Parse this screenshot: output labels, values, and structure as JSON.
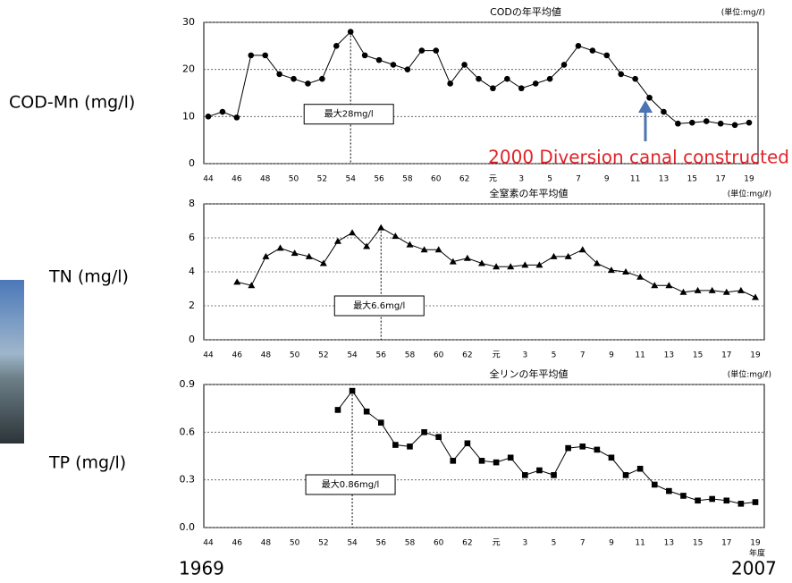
{
  "chart_data": [
    {
      "type": "line",
      "title": "CODの年平均値",
      "unit": "(単位:mg/ℓ)",
      "ylabel": "COD-Mn (mg/l)",
      "max_label": "最大28mg/l",
      "annotation": "2000 Diversion canal constructed",
      "marker": "circle",
      "color": "#000000",
      "grid": true,
      "categories": [
        "44",
        null,
        "46",
        null,
        "48",
        null,
        "50",
        null,
        "52",
        null,
        "54",
        null,
        "56",
        null,
        "58",
        null,
        "60",
        null,
        "62",
        null,
        "元",
        null,
        "3",
        null,
        "5",
        null,
        "7",
        null,
        "9",
        null,
        "11",
        null,
        "13",
        null,
        "15",
        null,
        "17",
        null,
        "19"
      ],
      "values": [
        10,
        11,
        9.8,
        23,
        23,
        19,
        18,
        17,
        18,
        25,
        28,
        23,
        22,
        21,
        20,
        24,
        24,
        17,
        21,
        18,
        16,
        18,
        16,
        17,
        18,
        21,
        25,
        24,
        23,
        19,
        18,
        14,
        11,
        8.5,
        8.7,
        9,
        8.5,
        8.2,
        8.7
      ],
      "ylim": [
        0,
        30
      ],
      "yticks": [
        0,
        10,
        20,
        30
      ]
    },
    {
      "type": "line",
      "title": "全窒素の年平均値",
      "unit": "(単位:mg/ℓ)",
      "ylabel": "TN (mg/l)",
      "max_label": "最大6.6mg/l",
      "marker": "triangle",
      "color": "#000000",
      "grid": true,
      "categories": [
        "44",
        null,
        "46",
        null,
        "48",
        null,
        "50",
        null,
        "52",
        null,
        "54",
        null,
        "56",
        null,
        "58",
        null,
        "60",
        null,
        "62",
        null,
        "元",
        null,
        "3",
        null,
        "5",
        null,
        "7",
        null,
        "9",
        null,
        "11",
        null,
        "13",
        null,
        "15",
        null,
        "17",
        null,
        "19"
      ],
      "values": [
        null,
        null,
        3.4,
        3.2,
        4.9,
        5.4,
        5.1,
        4.9,
        4.5,
        5.8,
        6.3,
        5.5,
        6.6,
        6.1,
        5.6,
        5.3,
        5.3,
        4.6,
        4.8,
        4.5,
        4.3,
        4.3,
        4.4,
        4.4,
        4.9,
        4.9,
        5.3,
        4.5,
        4.1,
        4.0,
        3.7,
        3.2,
        3.2,
        2.8,
        2.9,
        2.9,
        2.8,
        2.9,
        2.5
      ],
      "ylim": [
        0,
        8
      ],
      "yticks": [
        0,
        2,
        4,
        6,
        8
      ]
    },
    {
      "type": "line",
      "title": "全リンの年平均値",
      "unit": "(単位:mg/ℓ)",
      "ylabel": "TP (mg/l)",
      "max_label": "最大0.86mg/l",
      "marker": "square",
      "color": "#000000",
      "grid": true,
      "x_unit": "年度",
      "categories": [
        "44",
        null,
        "46",
        null,
        "48",
        null,
        "50",
        null,
        "52",
        null,
        "54",
        null,
        "56",
        null,
        "58",
        null,
        "60",
        null,
        "62",
        null,
        "元",
        null,
        "3",
        null,
        "5",
        null,
        "7",
        null,
        "9",
        null,
        "11",
        null,
        "13",
        null,
        "15",
        null,
        "17",
        null,
        "19"
      ],
      "values": [
        null,
        null,
        null,
        null,
        null,
        null,
        null,
        null,
        null,
        0.74,
        0.86,
        0.73,
        0.66,
        0.52,
        0.51,
        0.6,
        0.57,
        0.42,
        0.53,
        0.42,
        0.41,
        0.44,
        0.33,
        0.36,
        0.33,
        0.5,
        0.51,
        0.49,
        0.44,
        0.33,
        0.37,
        0.27,
        0.23,
        0.2,
        0.17,
        0.18,
        0.17,
        0.15,
        0.16
      ],
      "ylim": [
        0,
        0.9
      ],
      "yticks": [
        {
          "value": 0,
          "label": "0.0"
        },
        0.3,
        0.6,
        0.9
      ]
    }
  ],
  "footer": {
    "start": "1969",
    "end": "2007"
  }
}
